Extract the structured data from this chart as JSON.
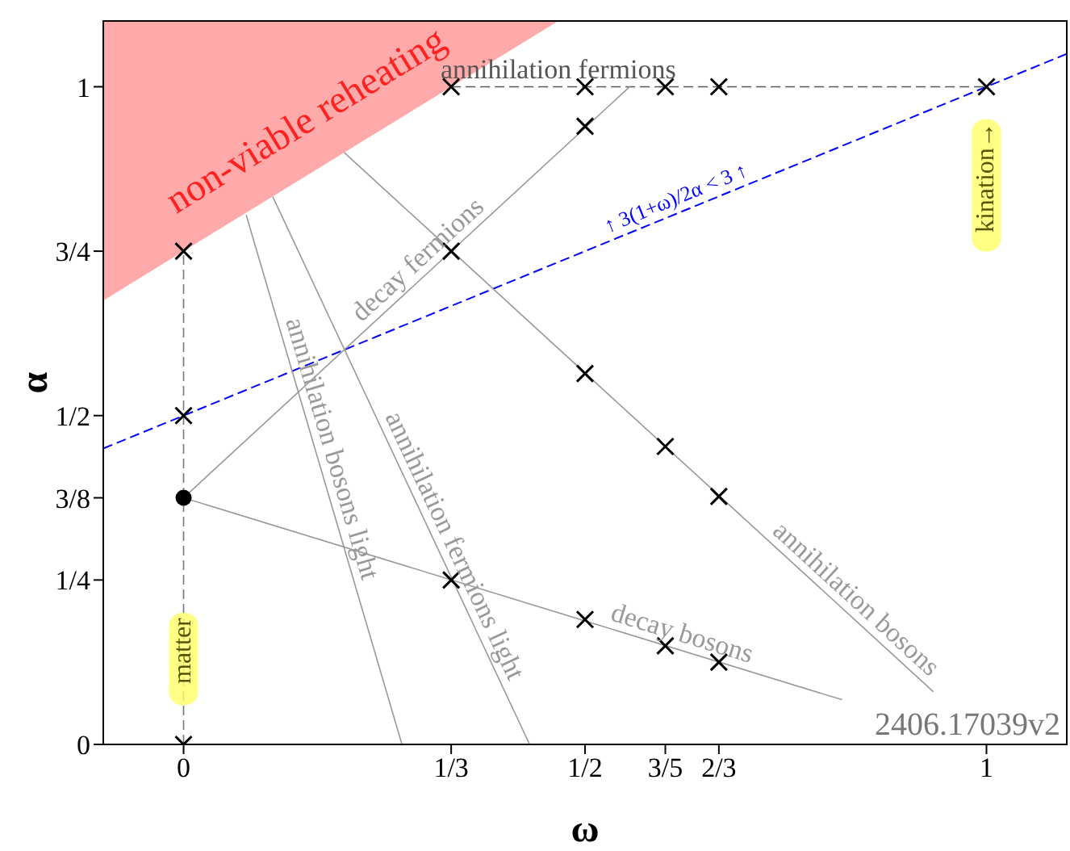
{
  "chart_data": {
    "type": "line",
    "xlabel": "ω",
    "ylabel": "α",
    "xlim": [
      -0.1,
      1.1
    ],
    "ylim": [
      0,
      1.1
    ],
    "xticks": [
      0,
      {
        "value": 0.3333,
        "label": "1/3"
      },
      {
        "value": 0.5,
        "label": "1/2"
      },
      {
        "value": 0.6,
        "label": "3/5"
      },
      {
        "value": 0.6667,
        "label": "2/3"
      },
      1
    ],
    "yticks": [
      0,
      {
        "value": 0.25,
        "label": "1/4"
      },
      {
        "value": 0.375,
        "label": "3/8"
      },
      {
        "value": 0.5,
        "label": "1/2"
      },
      {
        "value": 0.75,
        "label": "3/4"
      },
      1
    ],
    "grid": false,
    "series": [
      {
        "type": "area",
        "name": "non-viable reheating",
        "color": "#ffaaaa",
        "x": [
          -0.1,
          0.4667
        ],
        "values": [
          0.675,
          1.1
        ],
        "marker": "none"
      },
      {
        "type": "line",
        "name": "↑ 3(1+ω)/2α < 3 ↑",
        "color": "#0000ff",
        "x": [
          -0.1,
          1.1
        ],
        "values": [
          0.45,
          1.05
        ],
        "line_style": "dashed",
        "marker": "none"
      },
      {
        "type": "line",
        "name": "annihilation fermions",
        "color": "#555555",
        "x": [
          0.3333,
          1
        ],
        "values": [
          1,
          1
        ],
        "line_style": "dashed",
        "marker": "none"
      },
      {
        "name": "decay fermions",
        "color": "#999999",
        "x": [
          0,
          0.5556
        ],
        "values": [
          0.375,
          1
        ],
        "line_style": "solid",
        "marker": "none"
      },
      {
        "type": "line",
        "name": "annihilation bosons",
        "color": "#999999",
        "x": [
          0.2,
          0.934
        ],
        "values": [
          0.9,
          0.08
        ],
        "line_style": "solid",
        "marker": "none"
      },
      {
        "name": "decay bosons",
        "color": "#999999",
        "x": [
          0,
          0.82
        ],
        "values": [
          0.375,
          0.068
        ],
        "line_style": "solid",
        "marker": "none"
      },
      {
        "type": "line",
        "name": "annihilation bosons light",
        "color": "#999999",
        "x": [
          0.078,
          0.272
        ],
        "values": [
          0.805,
          0
        ],
        "line_style": "solid",
        "marker": "none"
      },
      {
        "type": "line",
        "name": "annihilation fermions light",
        "color": "#999999",
        "x": [
          0.111,
          0.431
        ],
        "values": [
          0.833,
          0
        ],
        "line_style": "solid",
        "marker": "none"
      },
      {
        "type": "line",
        "color": "#777777",
        "x": [
          0,
          0
        ],
        "values": [
          0,
          0.75
        ],
        "line_style": "dashed",
        "marker": "none"
      },
      {
        "type": "scatter",
        "color": "#000000",
        "marker": "cross",
        "x": [
          0,
          0,
          0,
          0.3333,
          0.5,
          0.6,
          0.6667,
          1,
          0.3333,
          0.5,
          0.5,
          0.6,
          0.6667,
          0.3333,
          0.5,
          0.6,
          0.6667
        ],
        "values": [
          0,
          0.5,
          0.75,
          1,
          1,
          1,
          1,
          1,
          0.75,
          0.94,
          0.564,
          0.453,
          0.377,
          0.25,
          0.19,
          0.15,
          0.125
        ]
      },
      {
        "type": "scatter",
        "color": "#000000",
        "marker": "circle",
        "x": [
          0
        ],
        "values": [
          0.375
        ]
      }
    ],
    "annotations": [
      "matter",
      "kination→",
      "2406.17039v2"
    ]
  }
}
